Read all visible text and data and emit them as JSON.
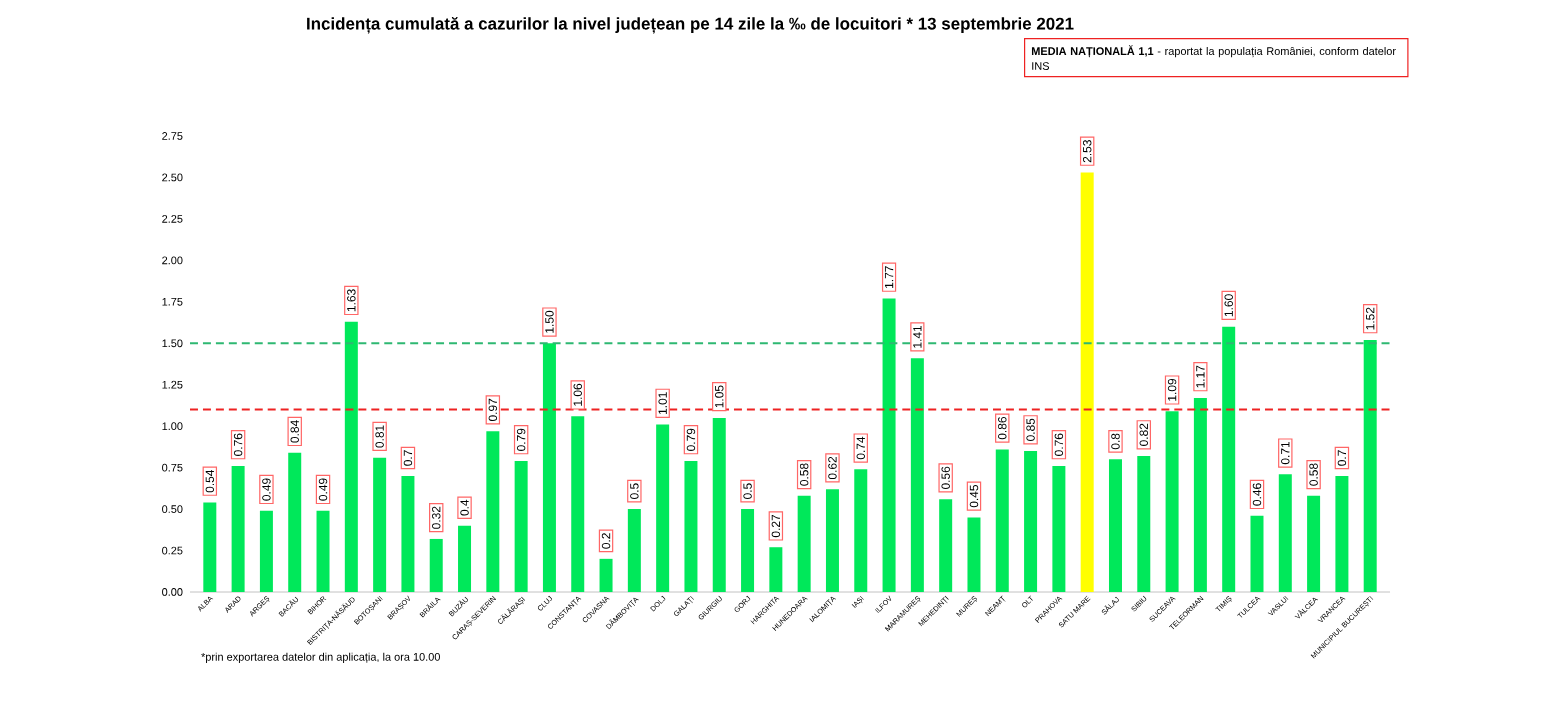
{
  "chart_data": {
    "type": "bar",
    "title": "Incidența cumulată a cazurilor la nivel județean pe 14 zile la ‰ de locuitori * 13 septembrie 2021",
    "categories": [
      "ALBA",
      "ARAD",
      "ARGEȘ",
      "BACĂU",
      "BIHOR",
      "BISTRIȚA-NĂSĂUD",
      "BOTOȘANI",
      "BRAȘOV",
      "BRĂILA",
      "BUZĂU",
      "CARAȘ-SEVERIN",
      "CĂLĂRAȘI",
      "CLUJ",
      "CONSTANȚA",
      "COVASNA",
      "DÂMBOVIȚA",
      "DOLJ",
      "GALAȚI",
      "GIURGIU",
      "GORJ",
      "HARGHITA",
      "HUNEDOARA",
      "IALOMIȚA",
      "IAȘI",
      "ILFOV",
      "MARAMUREȘ",
      "MEHEDINȚI",
      "MUREȘ",
      "NEAMȚ",
      "OLT",
      "PRAHOVA",
      "SATU MARE",
      "SĂLAJ",
      "SIBIU",
      "SUCEAVA",
      "TELEORMAN",
      "TIMIȘ",
      "TULCEA",
      "VASLUI",
      "VÂLCEA",
      "VRANCEA",
      "MUNICIPIUL BUCUREȘTI"
    ],
    "values": [
      0.54,
      0.76,
      0.49,
      0.84,
      0.49,
      1.63,
      0.81,
      0.7,
      0.32,
      0.4,
      0.97,
      0.79,
      1.5,
      1.06,
      0.2,
      0.5,
      1.01,
      0.79,
      1.05,
      0.5,
      0.27,
      0.58,
      0.62,
      0.74,
      1.77,
      1.41,
      0.56,
      0.45,
      0.86,
      0.85,
      0.76,
      2.53,
      0.8,
      0.82,
      1.09,
      1.17,
      1.6,
      0.46,
      0.71,
      0.58,
      0.7,
      1.52
    ],
    "value_labels": [
      "0.54",
      "0.76",
      "0.49",
      "0.84",
      "0.49",
      "1.63",
      "0.81",
      "0.7",
      "0.32",
      "0.4",
      "0.97",
      "0.79",
      "1.50",
      "1.06",
      "0.2",
      "0.5",
      "1.01",
      "0.79",
      "1.05",
      "0.5",
      "0.27",
      "0.58",
      "0.62",
      "0.74",
      "1.77",
      "1.41",
      "0.56",
      "0.45",
      "0.86",
      "0.85",
      "0.76",
      "2.53",
      "0.8",
      "0.82",
      "1.09",
      "1.17",
      "1.60",
      "0.46",
      "0.71",
      "0.58",
      "0.7",
      "1.52"
    ],
    "colors": [
      "#00e85a",
      "#00e85a",
      "#00e85a",
      "#00e85a",
      "#00e85a",
      "#00e85a",
      "#00e85a",
      "#00e85a",
      "#00e85a",
      "#00e85a",
      "#00e85a",
      "#00e85a",
      "#00e85a",
      "#00e85a",
      "#00e85a",
      "#00e85a",
      "#00e85a",
      "#00e85a",
      "#00e85a",
      "#00e85a",
      "#00e85a",
      "#00e85a",
      "#00e85a",
      "#00e85a",
      "#00e85a",
      "#00e85a",
      "#00e85a",
      "#00e85a",
      "#00e85a",
      "#00e85a",
      "#00e85a",
      "#ffff00",
      "#00e85a",
      "#00e85a",
      "#00e85a",
      "#00e85a",
      "#00e85a",
      "#00e85a",
      "#00e85a",
      "#00e85a",
      "#00e85a",
      "#00e85a"
    ],
    "ylim": [
      0,
      2.75
    ],
    "yticks": [
      {
        "value": 0,
        "label": "0.00"
      },
      {
        "value": 0.25,
        "label": "0.25"
      },
      {
        "value": 0.5,
        "label": "0.50"
      },
      {
        "value": 0.75,
        "label": "0.75"
      },
      {
        "value": 1,
        "label": "1.00"
      },
      {
        "value": 1.25,
        "label": "1.25"
      },
      {
        "value": 1.5,
        "label": "1.50"
      },
      {
        "value": 1.75,
        "label": "1.75"
      },
      {
        "value": 2,
        "label": "2.00"
      },
      {
        "value": 2.25,
        "label": "2.25"
      },
      {
        "value": 2.5,
        "label": "2.50"
      },
      {
        "value": 2.75,
        "label": "2.75"
      }
    ],
    "ref_lines": [
      {
        "axis": "y",
        "value": 1.5,
        "label": null,
        "color": "#2eb872",
        "line_style": "dashed"
      },
      {
        "axis": "y",
        "value": 1.1,
        "label": "**MEDIA NAȚIONALĂ 1,1** - raportat la populația României, conform datelor INS",
        "color": "#ee2222",
        "line_style": "dashed"
      }
    ],
    "annotations": [
      "*prin exportarea datelor din aplicația, la ora 10.00"
    ],
    "grid": false
  }
}
